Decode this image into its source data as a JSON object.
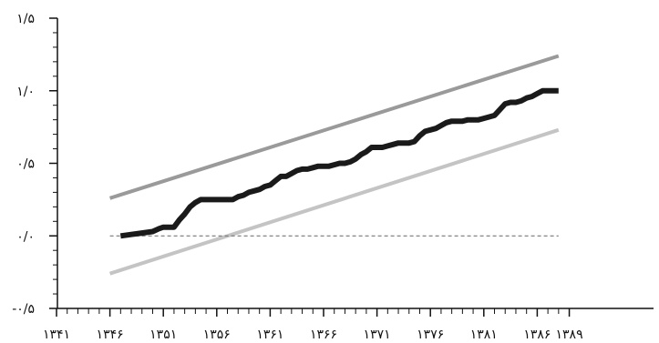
{
  "chart_data": {
    "type": "line",
    "title": "",
    "xlabel": "",
    "ylabel": "",
    "xlim": [
      1341,
      1389
    ],
    "ylim": [
      -0.5,
      1.5
    ],
    "x_ticks": [
      1341,
      1346,
      1351,
      1356,
      1361,
      1366,
      1371,
      1376,
      1381,
      1386,
      1389
    ],
    "x_tick_labels": [
      "۱۳۴۱",
      "۱۳۴۶",
      "۱۳۵۱",
      "۱۳۵۶",
      "۱۳۶۱",
      "۱۳۶۶",
      "۱۳۷۱",
      "۱۳۷۶",
      "۱۳۸۱",
      "۱۳۸۶",
      "۱۳۸۹"
    ],
    "y_ticks": [
      -0.5,
      0.0,
      0.5,
      1.0,
      1.5
    ],
    "y_tick_labels": [
      "-۰/۵",
      "۰/۰",
      "۰/۵",
      "۱/۰",
      "۱/۵"
    ],
    "grid": false,
    "legend": "none",
    "series": [
      {
        "color": "#1a1a1a",
        "style": "solid-thick",
        "x": [
          1347,
          1348,
          1349,
          1350,
          1350.6,
          1351,
          1351.6,
          1352,
          1352.5,
          1353,
          1353.5,
          1354,
          1354.5,
          1355,
          1355.5,
          1356,
          1356.5,
          1357,
          1357.5,
          1358,
          1358.5,
          1359,
          1359.5,
          1360,
          1360.5,
          1361,
          1361.5,
          1362,
          1362.5,
          1363,
          1363.5,
          1364,
          1364.5,
          1365,
          1365.5,
          1366,
          1366.5,
          1367,
          1367.5,
          1368,
          1368.5,
          1369,
          1369.5,
          1370,
          1370.5,
          1371,
          1371.5,
          1372,
          1372.5,
          1373,
          1373.5,
          1374,
          1374.5,
          1375,
          1375.5,
          1376,
          1376.5,
          1377,
          1377.5,
          1378,
          1378.5,
          1379,
          1379.5,
          1380,
          1380.5,
          1381,
          1381.5,
          1382,
          1382.5,
          1383,
          1383.5,
          1384,
          1384.5,
          1385,
          1385.5,
          1386,
          1386.5,
          1387,
          1387.5,
          1388
        ],
        "y": [
          0.0,
          0.01,
          0.02,
          0.03,
          0.05,
          0.06,
          0.06,
          0.06,
          0.11,
          0.15,
          0.2,
          0.23,
          0.25,
          0.25,
          0.25,
          0.25,
          0.25,
          0.25,
          0.25,
          0.27,
          0.28,
          0.3,
          0.31,
          0.32,
          0.34,
          0.35,
          0.38,
          0.41,
          0.41,
          0.43,
          0.45,
          0.46,
          0.46,
          0.47,
          0.48,
          0.48,
          0.48,
          0.49,
          0.5,
          0.5,
          0.51,
          0.53,
          0.56,
          0.58,
          0.61,
          0.61,
          0.61,
          0.62,
          0.63,
          0.64,
          0.64,
          0.64,
          0.65,
          0.69,
          0.72,
          0.73,
          0.74,
          0.76,
          0.78,
          0.79,
          0.79,
          0.79,
          0.8,
          0.8,
          0.8,
          0.81,
          0.82,
          0.83,
          0.87,
          0.91,
          0.92,
          0.92,
          0.93,
          0.95,
          0.96,
          0.98,
          1.0,
          1.0,
          1.0,
          1.0
        ]
      },
      {
        "color": "#9a9a9a",
        "style": "solid",
        "x": [
          1346,
          1388
        ],
        "y": [
          0.26,
          1.24
        ]
      },
      {
        "color": "#c4c4c4",
        "style": "solid",
        "x": [
          1346,
          1388
        ],
        "y": [
          -0.26,
          0.73
        ]
      },
      {
        "color": "#777777",
        "style": "dashed",
        "x": [
          1346,
          1388
        ],
        "y": [
          0.0,
          0.0
        ]
      }
    ]
  }
}
